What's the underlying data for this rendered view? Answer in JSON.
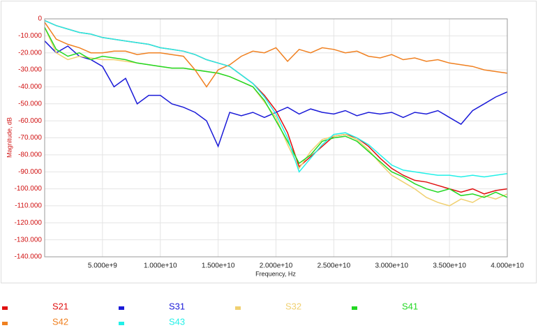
{
  "chart_data": {
    "type": "line",
    "x_label": "Frequency, Hz",
    "y_label": "Magnitude, dB",
    "x": [
      0,
      1000000000,
      2000000000,
      3000000000,
      4000000000,
      5000000000,
      6000000000,
      7000000000,
      8000000000,
      9000000000,
      10000000000,
      11000000000,
      12000000000,
      13000000000,
      14000000000,
      15000000000,
      16000000000,
      17000000000,
      18000000000,
      19000000000,
      20000000000,
      21000000000,
      22000000000,
      23000000000,
      24000000000,
      25000000000,
      26000000000,
      27000000000,
      28000000000,
      29000000000,
      30000000000,
      31000000000,
      32000000000,
      33000000000,
      34000000000,
      35000000000,
      36000000000,
      37000000000,
      38000000000,
      39000000000,
      40000000000
    ],
    "xlim": [
      0,
      40000000000
    ],
    "xticks": [
      {
        "value": 5000000000,
        "label": "5.000e+9"
      },
      {
        "value": 10000000000,
        "label": "1.000e+10"
      },
      {
        "value": 15000000000,
        "label": "1.500e+10"
      },
      {
        "value": 20000000000,
        "label": "2.000e+10"
      },
      {
        "value": 25000000000,
        "label": "2.500e+10"
      },
      {
        "value": 30000000000,
        "label": "3.000e+10"
      },
      {
        "value": 35000000000,
        "label": "3.500e+10"
      },
      {
        "value": 40000000000,
        "label": "4.000e+10"
      }
    ],
    "ylim": [
      -140,
      0
    ],
    "yticks": [
      0,
      {
        "value": -10,
        "label": "-10.000"
      },
      {
        "value": -20,
        "label": "-20.000"
      },
      {
        "value": -30,
        "label": "-30.000"
      },
      {
        "value": -40,
        "label": "-40.000"
      },
      {
        "value": -50,
        "label": "-50.000"
      },
      {
        "value": -60,
        "label": "-60.000"
      },
      {
        "value": -70,
        "label": "-70.000"
      },
      {
        "value": -80,
        "label": "-80.000"
      },
      {
        "value": -90,
        "label": "-90.000"
      },
      {
        "value": -100,
        "label": "-100.000"
      },
      {
        "value": -110,
        "label": "-110.000"
      },
      {
        "value": -120,
        "label": "-120.000"
      },
      {
        "value": -130,
        "label": "-130.000"
      },
      {
        "value": -140,
        "label": "-140.000"
      }
    ],
    "grid": true,
    "series": [
      {
        "name": "S21",
        "color": "#e01010",
        "values": [
          -1,
          -4,
          -6,
          -8,
          -9,
          -11,
          -12,
          -13,
          -14,
          -15,
          -17,
          -18,
          -19,
          -21,
          -24,
          -26,
          -28,
          -33,
          -38,
          -45,
          -54,
          -67,
          -87,
          -81,
          -75,
          -69,
          -68,
          -70,
          -75,
          -82,
          -88,
          -92,
          -95,
          -96,
          -98,
          -100,
          -102,
          -100,
          -103,
          -101,
          -100
        ]
      },
      {
        "name": "S31",
        "color": "#1a1ad8",
        "values": [
          -13,
          -20,
          -16,
          -22,
          -24,
          -28,
          -40,
          -35,
          -50,
          -45,
          -45,
          -50,
          -52,
          -55,
          -60,
          -75,
          -55,
          -57,
          -55,
          -58,
          -55,
          -52,
          -56,
          -53,
          -55,
          -56,
          -54,
          -57,
          -55,
          -56,
          -55,
          -58,
          -55,
          -56,
          -54,
          -58,
          -62,
          -54,
          -50,
          -46,
          -43
        ]
      },
      {
        "name": "S32",
        "color": "#f0d070",
        "values": [
          -5,
          -20,
          -24,
          -22,
          -23,
          -24,
          -24,
          -25,
          -26,
          -27,
          -28,
          -29,
          -29,
          -30,
          -31,
          -32,
          -34,
          -37,
          -40,
          -49,
          -58,
          -74,
          -88,
          -78,
          -71,
          -69,
          -68,
          -71,
          -77,
          -85,
          -92,
          -96,
          -100,
          -105,
          -108,
          -110,
          -106,
          -108,
          -104,
          -106,
          -103
        ]
      },
      {
        "name": "S41",
        "color": "#22d822",
        "values": [
          -5,
          -18,
          -22,
          -20,
          -24,
          -22,
          -23,
          -24,
          -26,
          -27,
          -28,
          -29,
          -29,
          -30,
          -31,
          -32,
          -34,
          -37,
          -40,
          -48,
          -60,
          -72,
          -85,
          -80,
          -72,
          -70,
          -69,
          -72,
          -78,
          -84,
          -90,
          -93,
          -97,
          -100,
          -102,
          -100,
          -104,
          -103,
          -105,
          -102,
          -105
        ]
      },
      {
        "name": "S42",
        "color": "#f08020",
        "values": [
          -2,
          -12,
          -15,
          -17,
          -20,
          -20,
          -19,
          -19,
          -21,
          -20,
          -20,
          -21,
          -22,
          -30,
          -40,
          -30,
          -27,
          -22,
          -19,
          -20,
          -17,
          -25,
          -18,
          -20,
          -17,
          -18,
          -20,
          -19,
          -22,
          -23,
          -21,
          -24,
          -23,
          -25,
          -24,
          -26,
          -27,
          -28,
          -30,
          -31,
          -32
        ]
      },
      {
        "name": "S43",
        "color": "#22f0e8",
        "values": [
          -1,
          -4,
          -6,
          -8,
          -9,
          -11,
          -12,
          -13,
          -14,
          -15,
          -17,
          -18,
          -19,
          -21,
          -24,
          -26,
          -28,
          -33,
          -38,
          -46,
          -56,
          -70,
          -90,
          -82,
          -74,
          -68,
          -67,
          -70,
          -74,
          -80,
          -86,
          -89,
          -90,
          -91,
          -92,
          -92,
          -93,
          -92,
          -93,
          -92,
          -91
        ]
      }
    ]
  }
}
